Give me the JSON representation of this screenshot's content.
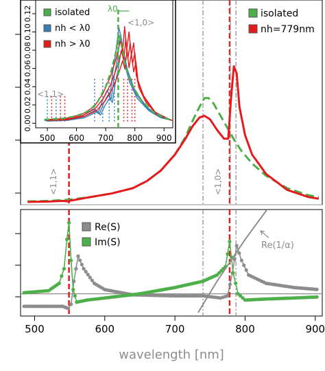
{
  "colors": {
    "green": "#4daf4a",
    "red": "#e41a1c",
    "blue": "#377eb8",
    "grey": "#8c8c8c",
    "frame": "#000000"
  },
  "xaxis": {
    "label": "wavelength [nm]",
    "ticks": [
      "500",
      "600",
      "700",
      "800",
      "900"
    ]
  },
  "top_panel": {
    "ylabel": "",
    "legend": {
      "isolated": "isolated",
      "nh": "nh=779nm"
    },
    "labels": {
      "mode11": "<1,1>",
      "mode10": "<1,0>"
    }
  },
  "inset": {
    "xticks": [
      "500",
      "600",
      "700",
      "800",
      "900"
    ],
    "yticks": [
      "0.00",
      "0.02",
      "0.04",
      "0.06",
      "0.08",
      "0.10",
      "0.12"
    ],
    "legend": {
      "isolated": "isolated",
      "below": "nh < λ0",
      "above": "nh > λ0"
    },
    "labels": {
      "lambda0": "λ0",
      "mode10": "<1,0>",
      "mode11": "<1,1>"
    }
  },
  "bottom_panel": {
    "legend": {
      "re": "Re(S)",
      "im": "Im(S)"
    },
    "annotation": "Re(1/α)"
  },
  "chart_data": [
    {
      "type": "line",
      "panel": "top",
      "xlim": [
        480,
        910
      ],
      "ylim": [
        0,
        1
      ],
      "grid": false,
      "legend_position": "top-right",
      "vlines": [
        {
          "x": 549,
          "style": "dashed",
          "color": "red"
        },
        {
          "x": 740,
          "style": "dashdot",
          "color": "grey"
        },
        {
          "x": 778,
          "style": "dashed",
          "color": "red"
        },
        {
          "x": 779,
          "style": "dashdot",
          "color": "grey"
        },
        {
          "x": 787,
          "style": "dashdot",
          "color": "grey"
        }
      ],
      "series": [
        {
          "name": "isolated",
          "color": "green",
          "style": "dashed",
          "x": [
            490,
            520,
            550,
            580,
            610,
            640,
            660,
            680,
            700,
            715,
            725,
            735,
            742,
            748,
            755,
            765,
            775,
            785,
            795,
            810,
            830,
            860,
            890,
            905
          ],
          "y": [
            0.015,
            0.018,
            0.025,
            0.04,
            0.06,
            0.09,
            0.13,
            0.19,
            0.28,
            0.38,
            0.47,
            0.55,
            0.6,
            0.6,
            0.57,
            0.5,
            0.43,
            0.36,
            0.3,
            0.23,
            0.16,
            0.09,
            0.05,
            0.04
          ]
        },
        {
          "name": "nh=779nm",
          "color": "red",
          "style": "solid",
          "x": [
            490,
            520,
            540,
            548,
            551,
            555,
            580,
            610,
            640,
            660,
            680,
            700,
            715,
            725,
            735,
            742,
            750,
            760,
            770,
            776,
            780,
            784,
            788,
            792,
            800,
            810,
            830,
            860,
            890,
            905
          ],
          "y": [
            0.012,
            0.014,
            0.018,
            0.015,
            0.02,
            0.022,
            0.04,
            0.06,
            0.09,
            0.13,
            0.19,
            0.28,
            0.37,
            0.44,
            0.49,
            0.5,
            0.48,
            0.42,
            0.37,
            0.37,
            0.6,
            0.78,
            0.74,
            0.55,
            0.39,
            0.28,
            0.17,
            0.08,
            0.04,
            0.03
          ]
        }
      ]
    },
    {
      "type": "line",
      "panel": "inset",
      "xlim": [
        460,
        930
      ],
      "ylim": [
        -0.005,
        0.135
      ],
      "xticks": [
        500,
        600,
        700,
        800,
        900
      ],
      "yticks": [
        0.0,
        0.02,
        0.04,
        0.06,
        0.08,
        0.1,
        0.12
      ],
      "grid": false,
      "legend_position": "top-left",
      "vlines": [
        {
          "x": 743,
          "style": "dashed",
          "color": "green"
        }
      ],
      "series": [
        {
          "name": "isolated",
          "color": "green",
          "style": "dashed",
          "x": [
            490,
            550,
            600,
            640,
            670,
            700,
            720,
            735,
            745,
            755,
            770,
            790,
            820,
            860,
            900,
            920
          ],
          "y": [
            0.004,
            0.005,
            0.008,
            0.013,
            0.022,
            0.04,
            0.058,
            0.078,
            0.098,
            0.085,
            0.06,
            0.042,
            0.026,
            0.013,
            0.006,
            0.004
          ]
        },
        {
          "name": "nh < λ0",
          "color": "blue",
          "style": "solid",
          "x": [
            490,
            560,
            620,
            660,
            675,
            690,
            705,
            715,
            725,
            735,
            745,
            752,
            760,
            775,
            800,
            840,
            880,
            920
          ],
          "y": [
            0.003,
            0.004,
            0.008,
            0.016,
            0.012,
            0.026,
            0.036,
            0.03,
            0.058,
            0.078,
            0.105,
            0.096,
            0.08,
            0.058,
            0.036,
            0.018,
            0.008,
            0.004
          ]
        },
        {
          "name": "nh > λ0",
          "color": "red",
          "style": "solid",
          "x": [
            490,
            560,
            620,
            660,
            690,
            715,
            735,
            750,
            758,
            765,
            772,
            780,
            788,
            796,
            805,
            830,
            870,
            920
          ],
          "y": [
            0.004,
            0.005,
            0.01,
            0.018,
            0.032,
            0.05,
            0.07,
            0.09,
            0.078,
            0.106,
            0.08,
            0.1,
            0.074,
            0.088,
            0.052,
            0.03,
            0.012,
            0.004
          ]
        }
      ]
    },
    {
      "type": "line",
      "panel": "bottom",
      "xlim": [
        480,
        910
      ],
      "ylim": [
        -1,
        4
      ],
      "grid": false,
      "legend_position": "top-left",
      "hlines": [
        {
          "y": 0,
          "color": "grey"
        }
      ],
      "vlines": [
        {
          "x": 549,
          "style": "dashed",
          "color": "red"
        },
        {
          "x": 740,
          "style": "dashdot",
          "color": "grey"
        },
        {
          "x": 778,
          "style": "dashed",
          "color": "red"
        },
        {
          "x": 787,
          "style": "dashdot",
          "color": "grey"
        }
      ],
      "series": [
        {
          "name": "Re(S)",
          "color": "grey",
          "style": "points",
          "x": [
            485,
            520,
            540,
            548,
            552,
            556,
            562,
            570,
            585,
            600,
            640,
            700,
            740,
            765,
            775,
            782,
            788,
            795,
            805,
            830,
            870,
            905
          ],
          "y": [
            -0.6,
            -0.6,
            -0.6,
            -0.7,
            -0.5,
            0.6,
            1.8,
            1.2,
            0.5,
            0.2,
            -0.05,
            -0.1,
            -0.1,
            -0.2,
            -0.1,
            1.0,
            2.3,
            1.6,
            0.9,
            0.5,
            0.3,
            0.2
          ]
        },
        {
          "name": "Im(S)",
          "color": "green",
          "style": "points",
          "x": [
            485,
            520,
            535,
            542,
            546,
            549,
            552,
            555,
            560,
            575,
            600,
            650,
            700,
            740,
            760,
            772,
            778,
            783,
            790,
            800,
            830,
            870,
            905
          ],
          "y": [
            0.05,
            0.15,
            0.5,
            1.2,
            2.6,
            3.4,
            1.6,
            0.2,
            -0.4,
            -0.3,
            -0.2,
            0.0,
            0.3,
            0.6,
            0.9,
            1.3,
            2.5,
            1.0,
            0.0,
            -0.3,
            -0.25,
            -0.2,
            -0.15
          ]
        },
        {
          "name": "Re(1/α)",
          "color": "grey",
          "style": "line",
          "x": [
            733,
            760,
            780,
            800,
            835
          ],
          "y": [
            -0.9,
            0.6,
            1.6,
            2.6,
            4.2
          ]
        }
      ]
    }
  ]
}
